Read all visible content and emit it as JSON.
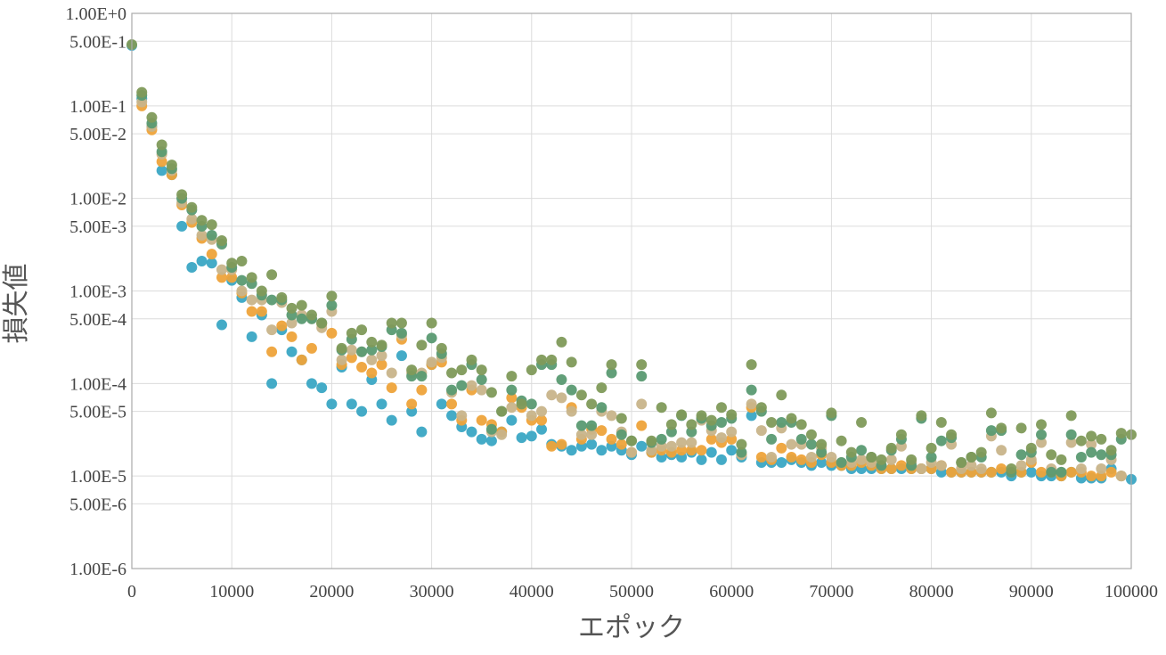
{
  "chart_data": {
    "type": "scatter",
    "xlabel": "エポック",
    "ylabel": "損失値",
    "x_scale": "linear",
    "y_scale": "log",
    "xlim": [
      0,
      100000
    ],
    "ylim": [
      1e-06,
      1
    ],
    "grid": true,
    "legend": "none",
    "x_ticks": [
      0,
      10000,
      20000,
      30000,
      40000,
      50000,
      60000,
      70000,
      80000,
      90000,
      100000
    ],
    "x_tick_labels": [
      "0",
      "10000",
      "20000",
      "30000",
      "40000",
      "50000",
      "60000",
      "70000",
      "80000",
      "90000",
      "100000"
    ],
    "y_ticks": [
      1,
      0.5,
      0.1,
      0.05,
      0.01,
      0.005,
      0.001,
      0.0005,
      0.0001,
      5e-05,
      1e-05,
      5e-06,
      1e-06
    ],
    "y_tick_labels": [
      "1.00E+0",
      "5.00E-1",
      "1.00E-1",
      "5.00E-2",
      "1.00E-2",
      "5.00E-3",
      "1.00E-3",
      "5.00E-4",
      "1.00E-4",
      "5.00E-5",
      "1.00E-5",
      "5.00E-6",
      "1.00E-6"
    ],
    "series": [
      {
        "color": "#3aa6c4",
        "x": [
          0,
          1000,
          2000,
          3000,
          4000,
          5000,
          6000,
          7000,
          8000,
          9000,
          10000,
          11000,
          12000,
          13000,
          14000,
          15000,
          16000,
          17000,
          18000,
          19000,
          20000,
          21000,
          22000,
          23000,
          24000,
          25000,
          26000,
          27000,
          28000,
          29000,
          30000,
          31000,
          32000,
          33000,
          34000,
          35000,
          36000,
          37000,
          38000,
          39000,
          40000,
          41000,
          42000,
          43000,
          44000,
          45000,
          46000,
          47000,
          48000,
          49000,
          50000,
          51000,
          52000,
          53000,
          54000,
          55000,
          56000,
          57000,
          58000,
          59000,
          60000,
          61000,
          62000,
          63000,
          64000,
          65000,
          66000,
          67000,
          68000,
          69000,
          70000,
          71000,
          72000,
          73000,
          74000,
          75000,
          76000,
          77000,
          78000,
          79000,
          80000,
          81000,
          82000,
          83000,
          84000,
          85000,
          86000,
          87000,
          88000,
          89000,
          90000,
          91000,
          92000,
          93000,
          94000,
          95000,
          96000,
          97000,
          98000,
          99000,
          100000
        ],
        "y": [
          0.45,
          0.12,
          0.06,
          0.02,
          0.018,
          0.005,
          0.0018,
          0.0021,
          0.002,
          0.00043,
          0.0013,
          0.00085,
          0.00032,
          0.00055,
          0.0001,
          0.00038,
          0.00022,
          0.00018,
          0.0001,
          9e-05,
          6e-05,
          0.00015,
          6e-05,
          5e-05,
          0.00011,
          6e-05,
          4e-05,
          0.0002,
          5e-05,
          3e-05,
          0.00016,
          6e-05,
          4.5e-05,
          3.4e-05,
          3e-05,
          2.5e-05,
          2.4e-05,
          3e-05,
          4e-05,
          2.6e-05,
          2.7e-05,
          3.2e-05,
          2.2e-05,
          2.1e-05,
          1.9e-05,
          2.1e-05,
          2.2e-05,
          1.9e-05,
          2.1e-05,
          1.9e-05,
          1.7e-05,
          2.1e-05,
          1.8e-05,
          1.6e-05,
          1.7e-05,
          1.6e-05,
          1.8e-05,
          1.5e-05,
          1.8e-05,
          1.5e-05,
          1.9e-05,
          1.6e-05,
          4.5e-05,
          1.4e-05,
          1.4e-05,
          1.4e-05,
          1.5e-05,
          1.4e-05,
          1.3e-05,
          1.4e-05,
          1.3e-05,
          1.3e-05,
          1.2e-05,
          1.2e-05,
          1.2e-05,
          1.2e-05,
          1.2e-05,
          1.2e-05,
          1.2e-05,
          1.2e-05,
          1.2e-05,
          1.1e-05,
          1.1e-05,
          1.1e-05,
          1.1e-05,
          1.1e-05,
          1.1e-05,
          1.1e-05,
          1e-05,
          1.1e-05,
          1.1e-05,
          1e-05,
          1e-05,
          1e-05,
          1.1e-05,
          9.5e-06,
          9.5e-06,
          9.5e-06,
          1.2e-05,
          1e-05,
          9.2e-06
        ]
      },
      {
        "color": "#eea33a",
        "x": [
          1000,
          2000,
          3000,
          4000,
          5000,
          6000,
          7000,
          8000,
          9000,
          10000,
          11000,
          12000,
          13000,
          14000,
          15000,
          16000,
          17000,
          18000,
          19000,
          20000,
          21000,
          22000,
          23000,
          24000,
          25000,
          26000,
          27000,
          28000,
          29000,
          30000,
          31000,
          32000,
          33000,
          34000,
          35000,
          36000,
          37000,
          38000,
          39000,
          40000,
          41000,
          42000,
          43000,
          44000,
          45000,
          46000,
          47000,
          48000,
          49000,
          50000,
          51000,
          52000,
          53000,
          54000,
          55000,
          56000,
          57000,
          58000,
          59000,
          60000,
          61000,
          62000,
          63000,
          64000,
          65000,
          66000,
          67000,
          68000,
          69000,
          70000,
          71000,
          72000,
          73000,
          74000,
          75000,
          76000,
          77000,
          78000,
          79000,
          80000,
          81000,
          82000,
          83000,
          84000,
          85000,
          86000,
          87000,
          88000,
          89000,
          90000,
          91000,
          92000,
          93000,
          94000,
          95000,
          96000,
          97000,
          98000,
          99000
        ],
        "y": [
          0.1,
          0.055,
          0.025,
          0.018,
          0.0085,
          0.0055,
          0.0037,
          0.0025,
          0.0014,
          0.0014,
          0.00095,
          0.0006,
          0.0006,
          0.00022,
          0.00042,
          0.00032,
          0.00018,
          0.00024,
          0.00044,
          0.00035,
          0.00016,
          0.00019,
          0.00015,
          0.00013,
          0.00016,
          9e-05,
          0.0003,
          6e-05,
          8.5e-05,
          0.00016,
          0.00017,
          6e-05,
          4e-05,
          8.5e-05,
          4e-05,
          3.6e-05,
          3e-05,
          7e-05,
          5.5e-05,
          4e-05,
          4e-05,
          2.1e-05,
          2.2e-05,
          5.5e-05,
          2.5e-05,
          3.2e-05,
          3.1e-05,
          2.5e-05,
          2.2e-05,
          1.8e-05,
          3.5e-05,
          1.8e-05,
          1.9e-05,
          1.8e-05,
          1.9e-05,
          1.9e-05,
          1.9e-05,
          2.5e-05,
          2.3e-05,
          2.5e-05,
          1.7e-05,
          5.5e-05,
          1.6e-05,
          1.5e-05,
          2e-05,
          1.6e-05,
          1.5e-05,
          1.4e-05,
          1.7e-05,
          1.4e-05,
          1.3e-05,
          1.3e-05,
          1.4e-05,
          1.3e-05,
          1.2e-05,
          1.2e-05,
          1.3e-05,
          1.2e-05,
          1.2e-05,
          1.2e-05,
          1.3e-05,
          1.1e-05,
          1.1e-05,
          1.1e-05,
          1.1e-05,
          1.1e-05,
          1.2e-05,
          1.1e-05,
          1.1e-05,
          1.4e-05,
          1.1e-05,
          1.1e-05,
          1e-05,
          1.1e-05,
          1.1e-05,
          1e-05,
          1e-05,
          1.1e-05,
          1e-05
        ]
      },
      {
        "color": "#c8b48a",
        "x": [
          1000,
          2000,
          3000,
          4000,
          5000,
          6000,
          7000,
          8000,
          9000,
          10000,
          11000,
          12000,
          13000,
          14000,
          15000,
          16000,
          17000,
          18000,
          19000,
          20000,
          21000,
          22000,
          23000,
          24000,
          25000,
          26000,
          27000,
          28000,
          29000,
          30000,
          31000,
          32000,
          33000,
          34000,
          35000,
          36000,
          37000,
          38000,
          39000,
          40000,
          41000,
          42000,
          43000,
          44000,
          45000,
          46000,
          47000,
          48000,
          49000,
          50000,
          51000,
          52000,
          53000,
          54000,
          55000,
          56000,
          57000,
          58000,
          59000,
          60000,
          61000,
          62000,
          63000,
          64000,
          65000,
          66000,
          67000,
          68000,
          69000,
          70000,
          71000,
          72000,
          73000,
          74000,
          75000,
          76000,
          77000,
          78000,
          79000,
          80000,
          81000,
          82000,
          83000,
          84000,
          85000,
          86000,
          87000,
          88000,
          89000,
          90000,
          91000,
          92000,
          93000,
          94000,
          95000,
          96000,
          97000,
          98000,
          99000
        ],
        "y": [
          0.11,
          0.06,
          0.03,
          0.02,
          0.009,
          0.006,
          0.004,
          0.0036,
          0.0017,
          0.0017,
          0.001,
          0.0008,
          0.0008,
          0.00038,
          0.00075,
          0.00045,
          0.00055,
          0.0005,
          0.0004,
          0.0006,
          0.00018,
          0.00023,
          0.00022,
          0.00018,
          0.0002,
          0.00013,
          0.00033,
          0.00013,
          0.00013,
          0.00017,
          0.00019,
          8e-05,
          4.5e-05,
          9.5e-05,
          8.5e-05,
          3e-05,
          2.8e-05,
          5.5e-05,
          6e-05,
          4.5e-05,
          5e-05,
          7.5e-05,
          7e-05,
          5e-05,
          2.8e-05,
          2.8e-05,
          5e-05,
          4.5e-05,
          3e-05,
          1.8e-05,
          6e-05,
          1.9e-05,
          2.1e-05,
          2.1e-05,
          2.3e-05,
          2.3e-05,
          4e-05,
          3.1e-05,
          2.6e-05,
          3e-05,
          1.7e-05,
          6e-05,
          3.1e-05,
          1.6e-05,
          3.3e-05,
          2.2e-05,
          2.2e-05,
          1.6e-05,
          2e-05,
          1.6e-05,
          1.4e-05,
          1.4e-05,
          1.5e-05,
          1.4e-05,
          1.3e-05,
          1.5e-05,
          2.1e-05,
          1.4e-05,
          1.2e-05,
          1.4e-05,
          1.3e-05,
          2.2e-05,
          1.2e-05,
          1.3e-05,
          1.2e-05,
          2.7e-05,
          1.9e-05,
          1.1e-05,
          1.3e-05,
          1.5e-05,
          2.3e-05,
          1.2e-05,
          1.1e-05,
          2.3e-05,
          1.2e-05,
          2.2e-05,
          1.2e-05,
          1.5e-05,
          1e-05
        ]
      },
      {
        "color": "#5a9a72",
        "x": [
          1000,
          2000,
          3000,
          4000,
          5000,
          6000,
          7000,
          8000,
          9000,
          10000,
          11000,
          12000,
          13000,
          14000,
          15000,
          16000,
          17000,
          18000,
          19000,
          20000,
          21000,
          22000,
          23000,
          24000,
          25000,
          26000,
          27000,
          28000,
          29000,
          30000,
          31000,
          32000,
          33000,
          34000,
          35000,
          36000,
          37000,
          38000,
          39000,
          40000,
          41000,
          42000,
          43000,
          44000,
          45000,
          46000,
          47000,
          48000,
          49000,
          50000,
          51000,
          52000,
          53000,
          54000,
          55000,
          56000,
          57000,
          58000,
          59000,
          60000,
          61000,
          62000,
          63000,
          64000,
          65000,
          66000,
          67000,
          68000,
          69000,
          70000,
          71000,
          72000,
          73000,
          74000,
          75000,
          76000,
          77000,
          78000,
          79000,
          80000,
          81000,
          82000,
          83000,
          84000,
          85000,
          86000,
          87000,
          88000,
          89000,
          90000,
          91000,
          92000,
          93000,
          94000,
          95000,
          96000,
          97000,
          98000,
          99000
        ],
        "y": [
          0.13,
          0.065,
          0.032,
          0.021,
          0.01,
          0.0075,
          0.005,
          0.004,
          0.0032,
          0.0018,
          0.0013,
          0.0012,
          0.0009,
          0.0008,
          0.0008,
          0.00055,
          0.0005,
          0.0005,
          0.00045,
          0.0007,
          0.00023,
          0.0003,
          0.00022,
          0.00023,
          0.00025,
          0.00038,
          0.00035,
          0.00012,
          0.00012,
          0.00031,
          0.00021,
          8.5e-05,
          9.5e-05,
          0.00016,
          0.00011,
          3.2e-05,
          5e-05,
          8.5e-05,
          6.5e-05,
          6e-05,
          0.00016,
          0.00016,
          0.00011,
          8.5e-05,
          3.5e-05,
          3.5e-05,
          5.5e-05,
          0.00013,
          2.8e-05,
          2.4e-05,
          0.00012,
          2.3e-05,
          2.5e-05,
          3e-05,
          4.5e-05,
          3e-05,
          4.2e-05,
          3.5e-05,
          3.8e-05,
          4.2e-05,
          1.8e-05,
          8.5e-05,
          5e-05,
          2.5e-05,
          3.8e-05,
          3.8e-05,
          2.5e-05,
          2.2e-05,
          1.8e-05,
          4.5e-05,
          1.4e-05,
          1.6e-05,
          1.9e-05,
          1.6e-05,
          1.3e-05,
          1.9e-05,
          2.5e-05,
          1.3e-05,
          4.2e-05,
          1.6e-05,
          2.4e-05,
          2.6e-05,
          1.4e-05,
          1.6e-05,
          1.6e-05,
          3.1e-05,
          3.1e-05,
          1.1e-05,
          1.7e-05,
          1.8e-05,
          2.8e-05,
          1.1e-05,
          1.1e-05,
          2.8e-05,
          1.6e-05,
          1.8e-05,
          1.7e-05,
          1.7e-05,
          2.5e-05
        ]
      },
      {
        "color": "#7f9a5a",
        "x": [
          0,
          1000,
          2000,
          3000,
          4000,
          5000,
          6000,
          7000,
          8000,
          9000,
          10000,
          11000,
          12000,
          13000,
          14000,
          15000,
          16000,
          17000,
          18000,
          19000,
          20000,
          21000,
          22000,
          23000,
          24000,
          25000,
          26000,
          27000,
          28000,
          29000,
          30000,
          31000,
          32000,
          33000,
          34000,
          35000,
          36000,
          37000,
          38000,
          39000,
          40000,
          41000,
          42000,
          43000,
          44000,
          45000,
          46000,
          47000,
          48000,
          49000,
          50000,
          51000,
          52000,
          53000,
          54000,
          55000,
          56000,
          57000,
          58000,
          59000,
          60000,
          61000,
          62000,
          63000,
          64000,
          65000,
          66000,
          67000,
          68000,
          69000,
          70000,
          71000,
          72000,
          73000,
          74000,
          75000,
          76000,
          77000,
          78000,
          79000,
          80000,
          81000,
          82000,
          83000,
          84000,
          85000,
          86000,
          87000,
          88000,
          89000,
          90000,
          91000,
          92000,
          93000,
          94000,
          95000,
          96000,
          97000,
          98000,
          99000,
          100000
        ],
        "y": [
          0.46,
          0.14,
          0.075,
          0.038,
          0.023,
          0.011,
          0.008,
          0.0058,
          0.0052,
          0.0035,
          0.002,
          0.0021,
          0.0014,
          0.001,
          0.0015,
          0.00085,
          0.00065,
          0.0007,
          0.00055,
          0.00045,
          0.00088,
          0.00024,
          0.00035,
          0.00038,
          0.00028,
          0.00026,
          0.00045,
          0.00045,
          0.00014,
          0.00026,
          0.00045,
          0.00024,
          0.00013,
          0.00014,
          0.00018,
          0.00014,
          8e-05,
          5e-05,
          0.00012,
          6e-05,
          0.00014,
          0.00018,
          0.00018,
          0.00028,
          0.00017,
          7.5e-05,
          6e-05,
          9e-05,
          0.00016,
          4.2e-05,
          2.4e-05,
          0.00016,
          2.4e-05,
          5.5e-05,
          3.6e-05,
          4.6e-05,
          3.6e-05,
          4.5e-05,
          4e-05,
          5.5e-05,
          4.6e-05,
          2.2e-05,
          0.00016,
          5.5e-05,
          3.8e-05,
          7.5e-05,
          4.2e-05,
          3.6e-05,
          2.8e-05,
          2.2e-05,
          4.8e-05,
          2.4e-05,
          1.8e-05,
          3.8e-05,
          1.6e-05,
          1.5e-05,
          2e-05,
          2.8e-05,
          1.5e-05,
          4.5e-05,
          2e-05,
          3.8e-05,
          2.8e-05,
          1.4e-05,
          1.6e-05,
          1.8e-05,
          4.8e-05,
          3.3e-05,
          1.2e-05,
          3.3e-05,
          2e-05,
          3.6e-05,
          1.7e-05,
          1.5e-05,
          4.5e-05,
          2.4e-05,
          2.7e-05,
          2.5e-05,
          1.9e-05,
          2.9e-05,
          2.8e-05
        ]
      }
    ]
  }
}
